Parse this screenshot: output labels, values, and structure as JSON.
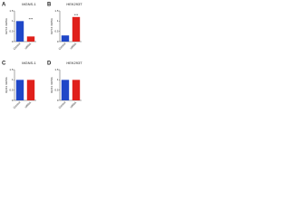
{
  "chart_data": [
    {
      "type": "bar",
      "panel": "A",
      "title": "MGNS-1",
      "y_label": "GPX4 mRNA",
      "categories": [
        "Control",
        "siRNA"
      ],
      "values": [
        1.0,
        0.25
      ],
      "colors": [
        "#1f47c8",
        "#e0201b"
      ],
      "ylim": [
        0,
        1.5
      ],
      "yticks": [
        0,
        0.5,
        1,
        1.5
      ],
      "annotation": "***"
    },
    {
      "type": "bar",
      "panel": "B",
      "title": "HEK293T",
      "y_label": "GPX4 mRNA",
      "categories": [
        "Control",
        "siRNA"
      ],
      "values": [
        0.3,
        1.2
      ],
      "colors": [
        "#1f47c8",
        "#e0201b"
      ],
      "ylim": [
        0,
        1.5
      ],
      "yticks": [
        0,
        0.5,
        1,
        1.5
      ],
      "annotation": "***"
    },
    {
      "type": "bar",
      "panel": "C",
      "title": "MGNS-1",
      "y_label": "Rpl13 mRNA",
      "categories": [
        "Control",
        "siRNA"
      ],
      "values": [
        1.0,
        1.0
      ],
      "colors": [
        "#1f47c8",
        "#e0201b"
      ],
      "ylim": [
        0,
        1.5
      ],
      "yticks": [
        0,
        0.5,
        1,
        1.5
      ]
    },
    {
      "type": "bar",
      "panel": "D",
      "title": "HEK293T",
      "y_label": "Rpl13 mRNA",
      "categories": [
        "Control",
        "siRNA"
      ],
      "values": [
        1.0,
        1.0
      ],
      "colors": [
        "#1f47c8",
        "#e0201b"
      ],
      "ylim": [
        0,
        1.5
      ],
      "yticks": [
        0,
        0.5,
        1,
        1.5
      ]
    }
  ]
}
